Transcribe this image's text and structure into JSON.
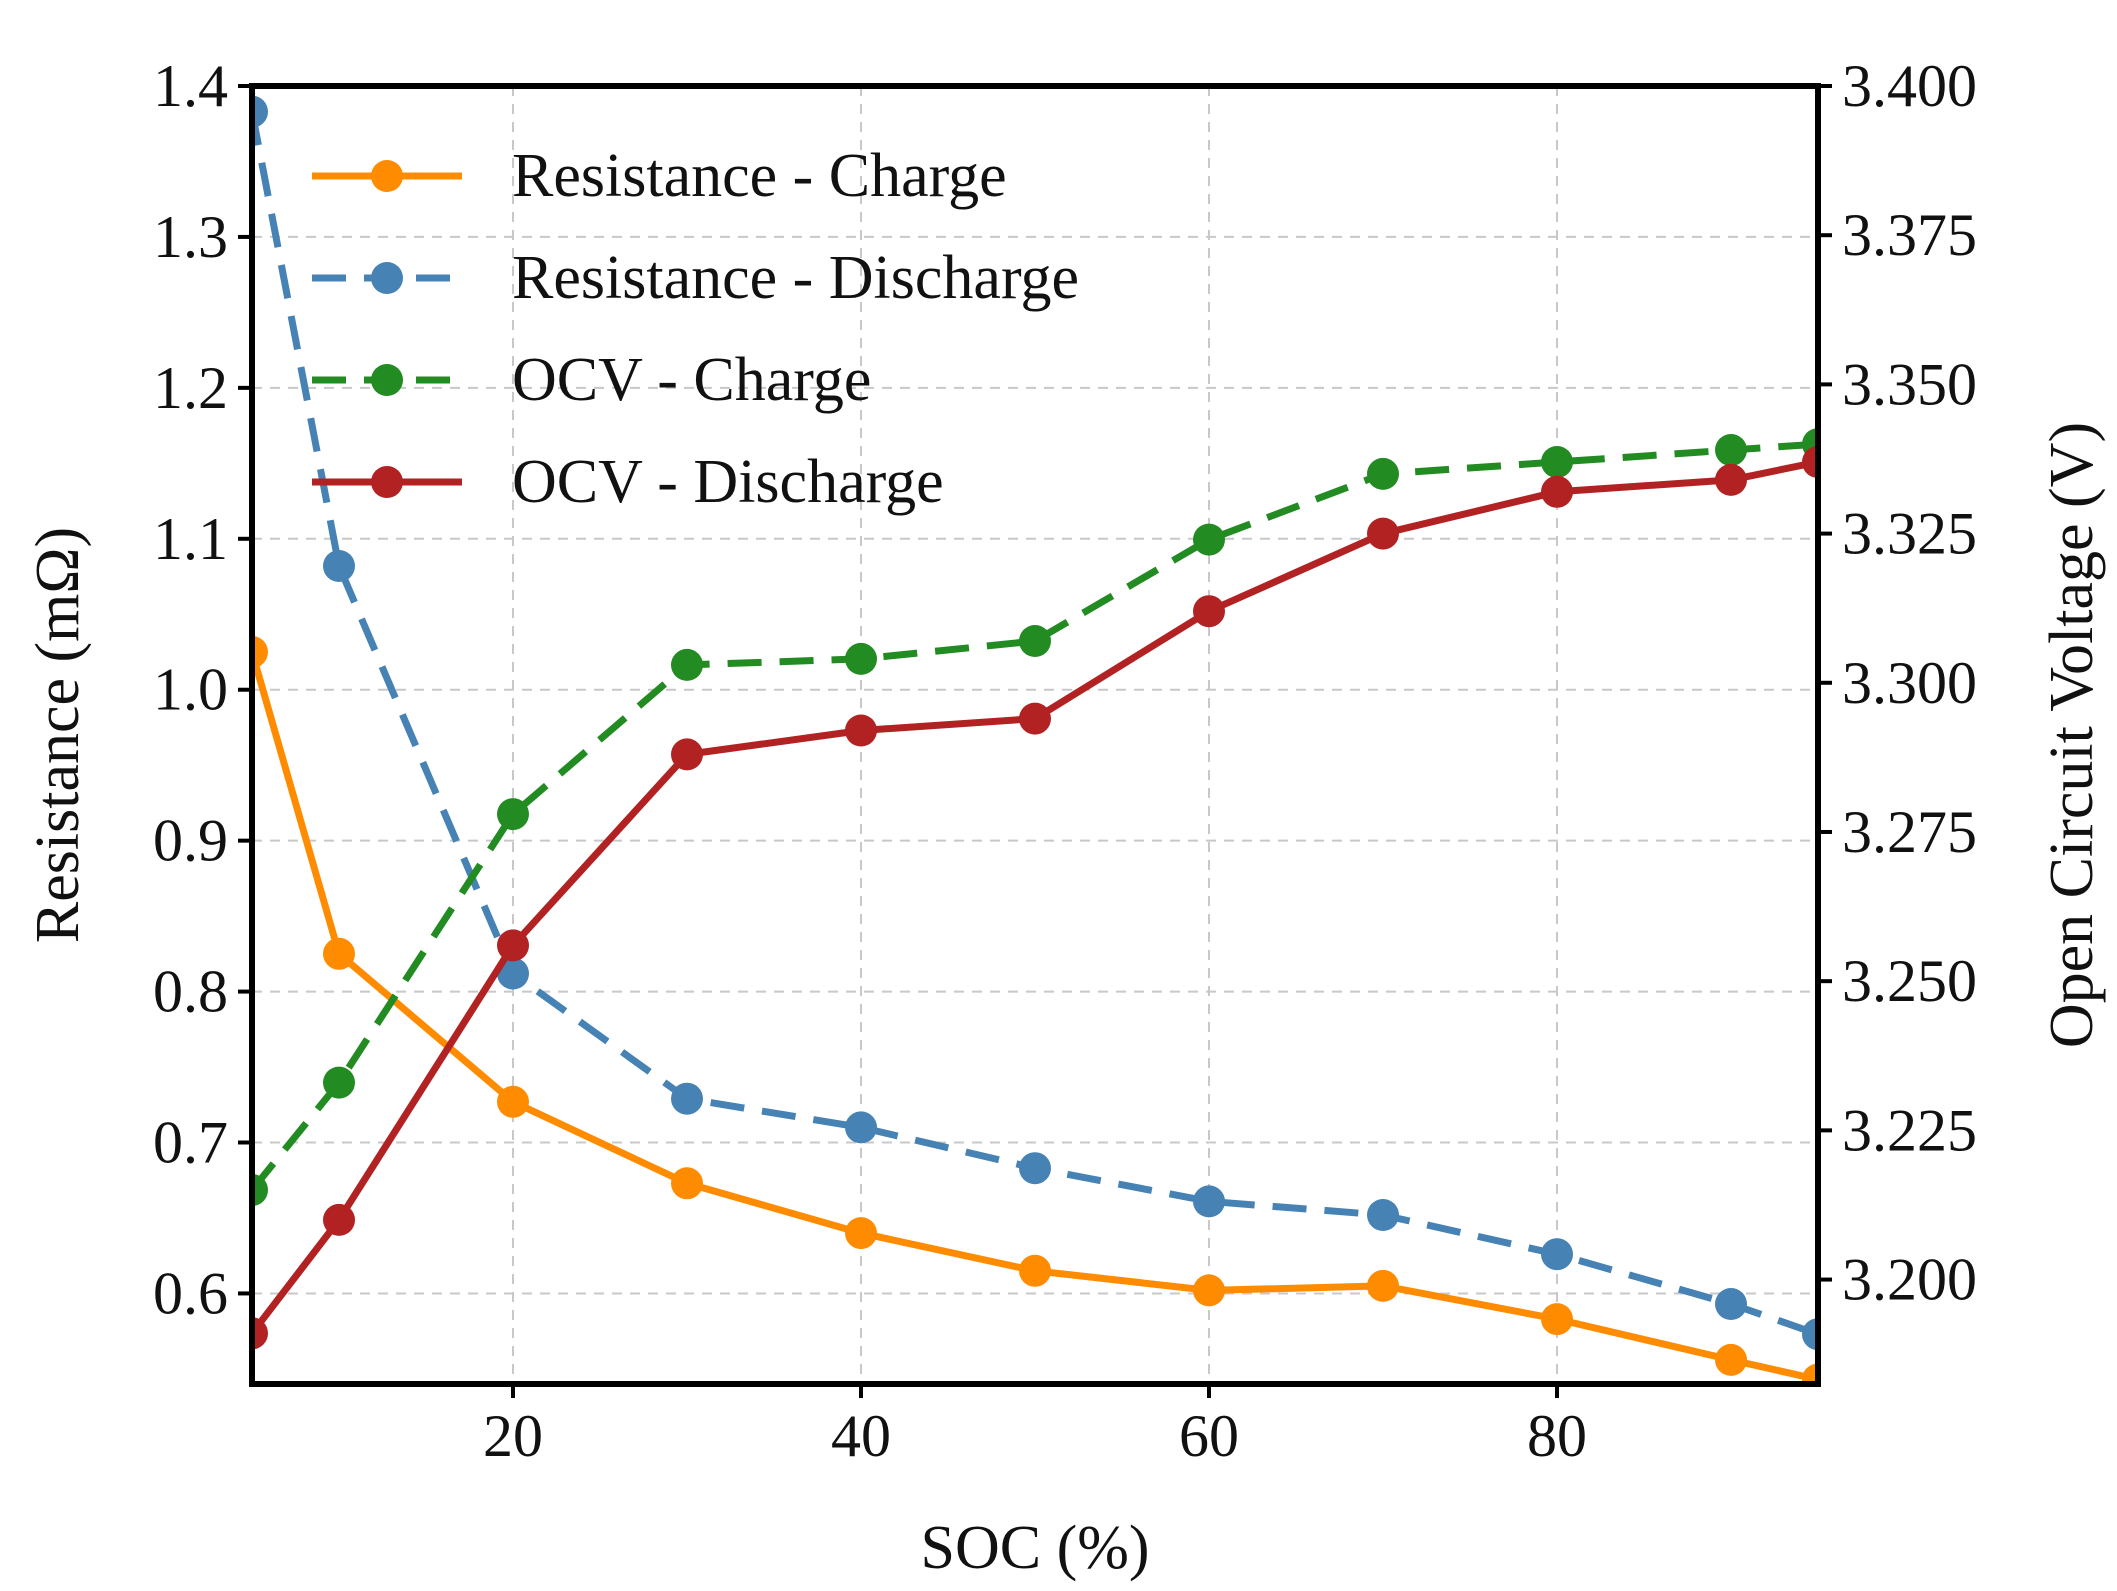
{
  "chart_data": {
    "type": "line",
    "xlabel": "SOC (%)",
    "ylabel_left": "Resistance (mΩ)",
    "ylabel_right": "Open Circuit Voltage (V)",
    "xlim": [
      5,
      95
    ],
    "ylim_left": [
      0.54,
      1.4
    ],
    "ylim_right": [
      3.1825,
      3.4
    ],
    "x_ticks": [
      20,
      40,
      60,
      80
    ],
    "x_tick_labels": [
      "20",
      "40",
      "60",
      "80"
    ],
    "y_left_ticks": [
      0.6,
      0.7,
      0.8,
      0.9,
      1.0,
      1.1,
      1.2,
      1.3,
      1.4
    ],
    "y_left_tick_labels": [
      "0.6",
      "0.7",
      "0.8",
      "0.9",
      "1.0",
      "1.1",
      "1.2",
      "1.3",
      "1.4"
    ],
    "y_right_ticks": [
      3.2,
      3.225,
      3.25,
      3.275,
      3.3,
      3.325,
      3.35,
      3.375,
      3.4
    ],
    "y_right_tick_labels": [
      "3.200",
      "3.225",
      "3.250",
      "3.275",
      "3.300",
      "3.325",
      "3.350",
      "3.375",
      "3.400"
    ],
    "grid": true,
    "legend_position": "upper-left",
    "x": [
      5,
      10,
      20,
      30,
      40,
      50,
      60,
      70,
      80,
      90,
      95
    ],
    "series": [
      {
        "name": "Resistance - Charge",
        "axis": "left",
        "color": "#ff8c00",
        "dash": false,
        "values": [
          1.025,
          0.825,
          0.727,
          0.673,
          0.64,
          0.615,
          0.602,
          0.605,
          0.583,
          0.556,
          0.543
        ]
      },
      {
        "name": "Resistance - Discharge",
        "axis": "left",
        "color": "#4682b4",
        "dash": true,
        "values": [
          1.383,
          1.082,
          0.812,
          0.729,
          0.71,
          0.683,
          0.661,
          0.652,
          0.626,
          0.593,
          0.573
        ]
      },
      {
        "name": "OCV - Charge",
        "axis": "right",
        "color": "#228b22",
        "dash": true,
        "values": [
          3.215,
          3.233,
          3.278,
          3.303,
          3.304,
          3.307,
          3.324,
          3.335,
          3.337,
          3.339,
          3.34
        ]
      },
      {
        "name": "OCV - Discharge",
        "axis": "right",
        "color": "#b22222",
        "dash": false,
        "values": [
          3.191,
          3.21,
          3.256,
          3.288,
          3.292,
          3.294,
          3.312,
          3.325,
          3.332,
          3.334,
          3.337
        ]
      }
    ]
  }
}
